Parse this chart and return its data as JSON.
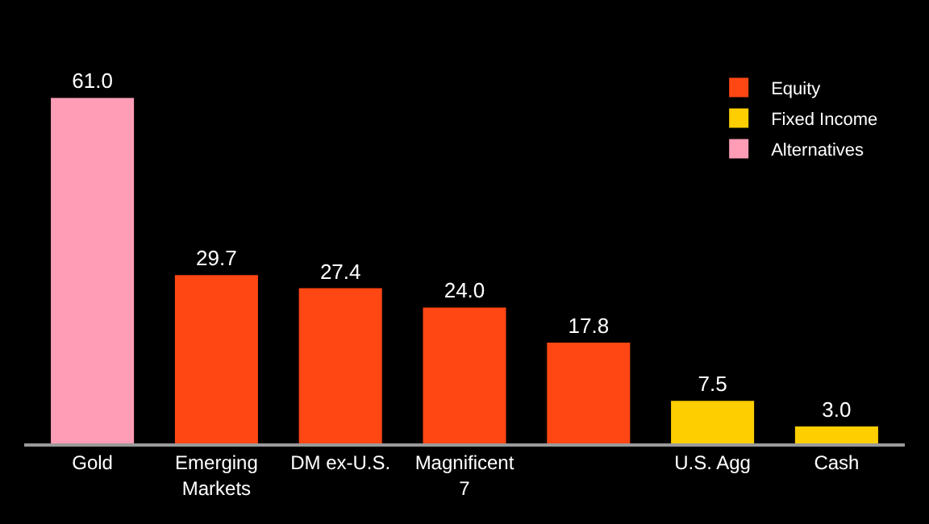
{
  "chart_data": {
    "type": "bar",
    "categories": [
      "Gold",
      "Emerging Markets",
      "DM ex-U.S.",
      "Magnificent 7",
      null,
      "U.S. Agg",
      "Cash"
    ],
    "series": [
      {
        "name": "Equity",
        "color": "#ff4713",
        "values": [
          null,
          29.7,
          27.4,
          24,
          17.8,
          null,
          null
        ],
        "value_labels": [
          null,
          "29.7",
          "27.4",
          "24.0",
          "17.8",
          null,
          null
        ]
      },
      {
        "name": "Fixed Income",
        "color": "#ffce00",
        "values": [
          null,
          null,
          null,
          null,
          null,
          7.5,
          3
        ],
        "value_labels": [
          null,
          null,
          null,
          null,
          null,
          "7.5",
          "3.0"
        ]
      },
      {
        "name": "Alternatives",
        "color": "#ff9db6",
        "values": [
          61,
          null,
          null,
          null,
          null,
          null,
          null
        ],
        "value_labels": [
          "61.0",
          null,
          null,
          null,
          null,
          null,
          null
        ]
      }
    ],
    "grid": false,
    "legend": "top right",
    "tick_labels": "x"
  }
}
